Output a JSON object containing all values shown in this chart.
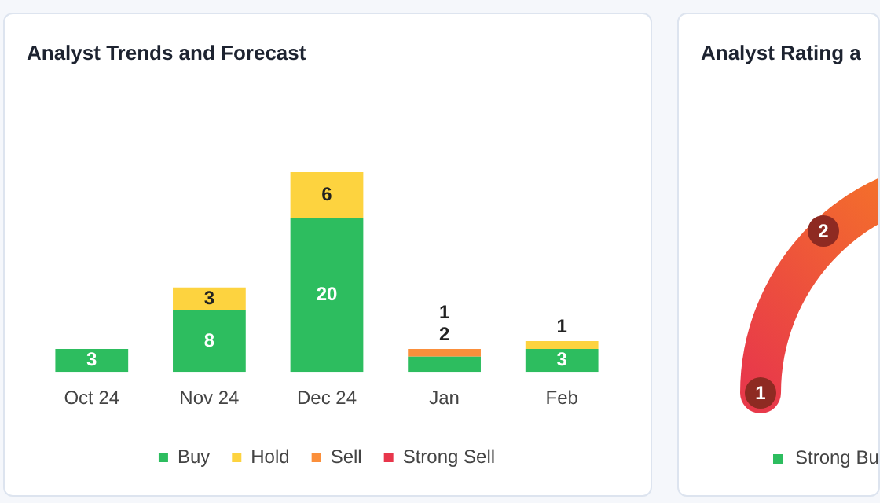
{
  "chart_data": [
    {
      "type": "bar",
      "title": "Analyst Trends and Forecast",
      "categories": [
        "Oct 24",
        "Nov 24",
        "Dec 24",
        "Jan",
        "Feb"
      ],
      "stacked": true,
      "data_labels": true,
      "legend": "bottom",
      "grid": false,
      "tick_labels": "x",
      "series": [
        {
          "name": "Buy",
          "color": "#2dbd5f",
          "values": [
            3,
            8,
            20,
            2,
            3
          ]
        },
        {
          "name": "Hold",
          "color": "#fdd33f",
          "values": [
            null,
            3,
            6,
            null,
            1
          ]
        },
        {
          "name": "Sell",
          "color": "#fb8f3b",
          "values": [
            null,
            null,
            null,
            1,
            null
          ]
        },
        {
          "name": "Strong Sell",
          "color": "#e8364b",
          "values": [
            null,
            null,
            null,
            null,
            null
          ]
        }
      ]
    },
    {
      "type": "other",
      "title": "Analyst Rating a",
      "annotations": [
        "1",
        "2",
        "Strong Bu"
      ]
    }
  ]
}
